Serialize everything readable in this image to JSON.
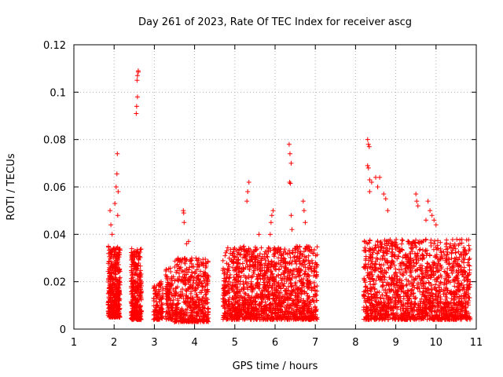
{
  "chart_data": {
    "type": "scatter",
    "title": "Day 261 of 2023, Rate Of TEC Index for receiver ascg",
    "xlabel": "GPS time / hours",
    "ylabel": "ROTI / TECUs",
    "xlim": [
      1,
      11
    ],
    "ylim": [
      0,
      0.12
    ],
    "xticks": [
      "1",
      "2",
      "3",
      "4",
      "5",
      "6",
      "7",
      "8",
      "9",
      "10",
      "11"
    ],
    "yticks": [
      "0",
      "0.02",
      "0.04",
      "0.06",
      "0.08",
      "0.1",
      "0.12"
    ],
    "grid": true,
    "marker": "+",
    "color": "#ff0000",
    "series": [
      {
        "name": "ROTI",
        "clusters": [
          {
            "x0": 1.85,
            "x1": 2.15,
            "ymin": 0.005,
            "ymax": 0.035,
            "n": 420
          },
          {
            "x0": 2.42,
            "x1": 2.68,
            "ymin": 0.004,
            "ymax": 0.034,
            "n": 320
          },
          {
            "x0": 2.98,
            "x1": 3.22,
            "ymin": 0.004,
            "ymax": 0.021,
            "n": 110
          },
          {
            "x0": 3.28,
            "x1": 3.48,
            "ymin": 0.004,
            "ymax": 0.026,
            "n": 110
          },
          {
            "x0": 3.5,
            "x1": 4.35,
            "ymin": 0.003,
            "ymax": 0.03,
            "n": 480
          },
          {
            "x0": 4.7,
            "x1": 7.05,
            "ymin": 0.004,
            "ymax": 0.035,
            "n": 1500
          },
          {
            "x0": 8.2,
            "x1": 10.85,
            "ymin": 0.004,
            "ymax": 0.038,
            "n": 1600
          }
        ],
        "outliers": [
          [
            1.9,
            0.05
          ],
          [
            1.92,
            0.044
          ],
          [
            1.95,
            0.04
          ],
          [
            2.02,
            0.053
          ],
          [
            2.05,
            0.06
          ],
          [
            2.07,
            0.0655
          ],
          [
            2.08,
            0.074
          ],
          [
            2.1,
            0.058
          ],
          [
            2.09,
            0.048
          ],
          [
            2.55,
            0.091
          ],
          [
            2.56,
            0.094
          ],
          [
            2.58,
            0.098
          ],
          [
            2.57,
            0.105
          ],
          [
            2.58,
            0.107
          ],
          [
            2.6,
            0.109
          ],
          [
            2.6,
            0.1085
          ],
          [
            3.72,
            0.05
          ],
          [
            3.73,
            0.049
          ],
          [
            3.74,
            0.045
          ],
          [
            3.8,
            0.036
          ],
          [
            3.85,
            0.037
          ],
          [
            5.3,
            0.054
          ],
          [
            5.32,
            0.058
          ],
          [
            5.35,
            0.062
          ],
          [
            5.6,
            0.04
          ],
          [
            5.88,
            0.04
          ],
          [
            5.9,
            0.045
          ],
          [
            5.92,
            0.048
          ],
          [
            5.95,
            0.05
          ],
          [
            6.35,
            0.078
          ],
          [
            6.37,
            0.074
          ],
          [
            6.4,
            0.07
          ],
          [
            6.38,
            0.0615
          ],
          [
            6.36,
            0.062
          ],
          [
            6.4,
            0.048
          ],
          [
            6.42,
            0.042
          ],
          [
            6.7,
            0.054
          ],
          [
            6.72,
            0.05
          ],
          [
            6.75,
            0.045
          ],
          [
            8.3,
            0.08
          ],
          [
            8.32,
            0.078
          ],
          [
            8.34,
            0.077
          ],
          [
            8.3,
            0.069
          ],
          [
            8.32,
            0.068
          ],
          [
            8.35,
            0.063
          ],
          [
            8.4,
            0.062
          ],
          [
            8.35,
            0.058
          ],
          [
            8.5,
            0.064
          ],
          [
            8.55,
            0.06
          ],
          [
            8.6,
            0.064
          ],
          [
            8.7,
            0.057
          ],
          [
            8.75,
            0.055
          ],
          [
            8.8,
            0.05
          ],
          [
            9.5,
            0.057
          ],
          [
            9.52,
            0.054
          ],
          [
            9.55,
            0.052
          ],
          [
            9.8,
            0.054
          ],
          [
            9.85,
            0.05
          ],
          [
            9.9,
            0.048
          ],
          [
            9.95,
            0.046
          ],
          [
            10.0,
            0.044
          ],
          [
            9.75,
            0.046
          ]
        ]
      }
    ]
  }
}
